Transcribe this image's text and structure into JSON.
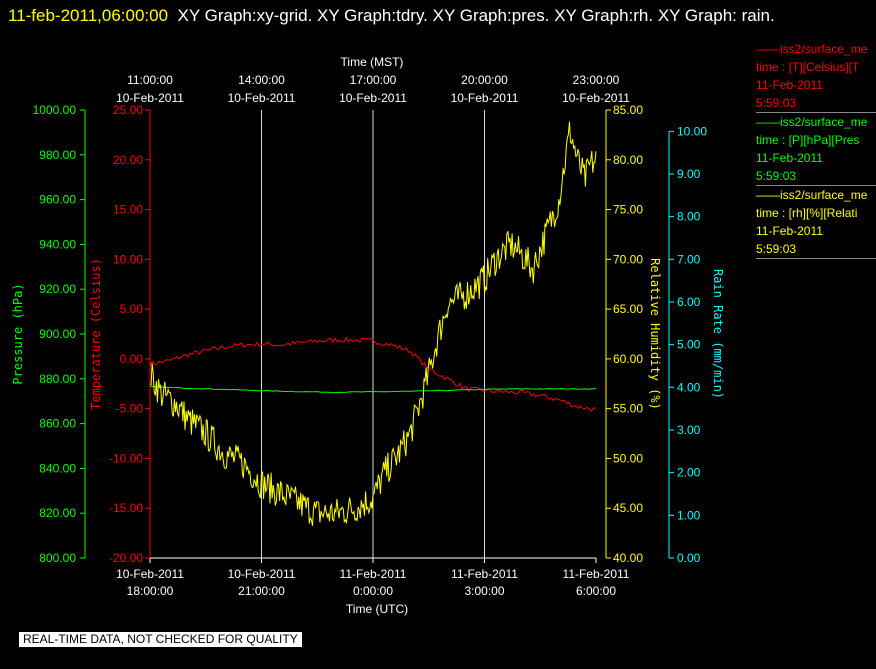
{
  "header": {
    "date": "11-feb-2011,06:00:00",
    "graphs": "XY Graph:xy-grid.  XY Graph:tdry.  XY Graph:pres.  XY Graph:rh.  XY Graph: rain."
  },
  "footer": {
    "notice": "REAL-TIME DATA, NOT CHECKED FOR QUALITY"
  },
  "colors": {
    "temperature": "#ff0000",
    "pressure": "#00ff00",
    "humidity": "#ffff00",
    "rain": "#00ffff",
    "axis": "#ffffff",
    "grid": "#ffffff",
    "background": "#000000"
  },
  "legend": [
    {
      "color": "#ff0000",
      "lines": [
        "——iss2/surface_me",
        "time : [T][Celsius][T",
        "11-Feb-2011",
        "5:59:03"
      ]
    },
    {
      "color": "#00ff00",
      "lines": [
        "——iss2/surface_me",
        "time : [P][hPa][Pres",
        "11-Feb-2011",
        "5:59:03"
      ]
    },
    {
      "color": "#ffff00",
      "lines": [
        "——iss2/surface_me",
        "time : [rh][%][Relati",
        "11-Feb-2011",
        "5:59:03"
      ]
    }
  ],
  "chart_data": {
    "type": "line",
    "grid": true,
    "x_bottom": {
      "label": "Time (UTC)",
      "range_hours_utc": [
        18,
        30
      ],
      "ticks": [
        {
          "hour": 18,
          "date": "10-Feb-2011",
          "time": "18:00:00"
        },
        {
          "hour": 21,
          "date": "10-Feb-2011",
          "time": "21:00:00"
        },
        {
          "hour": 24,
          "date": "11-Feb-2011",
          "time": "0:00:00"
        },
        {
          "hour": 27,
          "date": "11-Feb-2011",
          "time": "3:00:00"
        },
        {
          "hour": 30,
          "date": "11-Feb-2011",
          "time": "6:00:00"
        }
      ]
    },
    "x_top": {
      "label": "Time (MST)",
      "ticks": [
        {
          "hour": 18,
          "time": "11:00:00",
          "date": "10-Feb-2011"
        },
        {
          "hour": 21,
          "time": "14:00:00",
          "date": "10-Feb-2011"
        },
        {
          "hour": 24,
          "time": "17:00:00",
          "date": "10-Feb-2011"
        },
        {
          "hour": 27,
          "time": "20:00:00",
          "date": "10-Feb-2011"
        },
        {
          "hour": 30,
          "time": "23:00:00",
          "date": "10-Feb-2011"
        }
      ]
    },
    "axes": {
      "temperature": {
        "label": "Temperature (Celsius)",
        "range": [
          -20,
          25
        ],
        "ticks": [
          "-20.00",
          "-15.00",
          "-10.00",
          "-5.00",
          "0.00",
          "5.00",
          "10.00",
          "15.00",
          "20.00",
          "25.00"
        ]
      },
      "pressure": {
        "label": "Pressure (hPa)",
        "range": [
          800,
          1000
        ],
        "ticks": [
          "800.00",
          "820.00",
          "840.00",
          "860.00",
          "880.00",
          "900.00",
          "920.00",
          "940.00",
          "960.00",
          "980.00",
          "1000.00"
        ]
      },
      "humidity": {
        "label": "Relative Humidity (%)",
        "range": [
          40,
          85
        ],
        "ticks": [
          "40.00",
          "45.00",
          "50.00",
          "55.00",
          "60.00",
          "65.00",
          "70.00",
          "75.00",
          "80.00",
          "85.00"
        ]
      },
      "rain": {
        "label": "Rain Rate (mm/min)",
        "range": [
          0,
          10.5
        ],
        "ticks": [
          "0.00",
          "1.00",
          "2.00",
          "3.00",
          "4.00",
          "5.00",
          "6.00",
          "7.00",
          "8.00",
          "9.00",
          "10.00"
        ]
      }
    },
    "series": [
      {
        "axis": "temperature",
        "x": [
          18,
          18.5,
          19,
          19.5,
          20,
          20.5,
          21,
          21.5,
          22,
          22.5,
          23,
          23.5,
          24,
          24.5,
          25,
          25.5,
          26,
          26.5,
          27,
          27.5,
          28,
          28.5,
          29,
          29.5,
          30
        ],
        "values": [
          -0.5,
          -0.2,
          0.4,
          0.8,
          1.2,
          1.4,
          1.5,
          1.4,
          1.6,
          1.8,
          1.9,
          1.9,
          1.8,
          1.4,
          0.8,
          -1.0,
          -2.0,
          -3.0,
          -3.2,
          -3.3,
          -3.4,
          -3.7,
          -4.1,
          -4.8,
          -5.1
        ]
      },
      {
        "axis": "pressure",
        "x": [
          18,
          19,
          20,
          21,
          22,
          23,
          24,
          25,
          26,
          27,
          28,
          29,
          30
        ],
        "values": [
          876.5,
          875.8,
          875.3,
          874.7,
          874.3,
          874.0,
          874.2,
          874.4,
          874.8,
          875.3,
          875.5,
          875.5,
          875.5
        ]
      },
      {
        "axis": "humidity",
        "x": [
          18,
          18.3,
          18.7,
          19,
          19.5,
          20,
          20.5,
          21,
          21.5,
          22,
          22.5,
          23,
          23.5,
          24,
          24.3,
          24.7,
          25,
          25.3,
          25.5,
          25.7,
          26,
          26.5,
          27,
          27.3,
          27.7,
          28,
          28.3,
          28.7,
          29,
          29.3,
          29.5,
          29.7,
          29.85,
          30
        ],
        "values": [
          58.5,
          56.5,
          55.5,
          54.0,
          52.5,
          50.5,
          49.5,
          47.5,
          46.5,
          45.5,
          44.5,
          44.5,
          45.0,
          46.0,
          48.5,
          50.5,
          52.5,
          56.0,
          58.5,
          61.5,
          65.5,
          66.5,
          68.0,
          70.0,
          71.5,
          70.5,
          69.0,
          73.0,
          76.0,
          83.0,
          80.0,
          78.0,
          79.5,
          80.0
        ]
      }
    ]
  }
}
